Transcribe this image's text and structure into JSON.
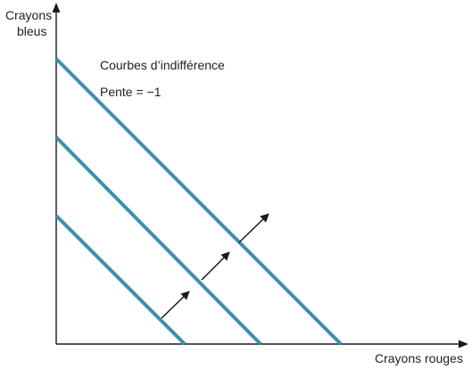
{
  "y_axis_label_line1": "Crayons",
  "y_axis_label_line2": "bleus",
  "x_axis_label": "Crayons rouges",
  "annotation_title": "Courbes d’indifférence",
  "annotation_slope": "Pente = −1",
  "colors": {
    "curve": "#3e8fb0",
    "axis": "#1a1a1a",
    "arrow": "#111111"
  },
  "curves": [
    {
      "name": "low"
    },
    {
      "name": "middle"
    },
    {
      "name": "high"
    }
  ],
  "shift_arrows": [
    {
      "name": "low-to-middle"
    },
    {
      "name": "middle-to-high-lower"
    },
    {
      "name": "middle-to-high-upper"
    }
  ]
}
